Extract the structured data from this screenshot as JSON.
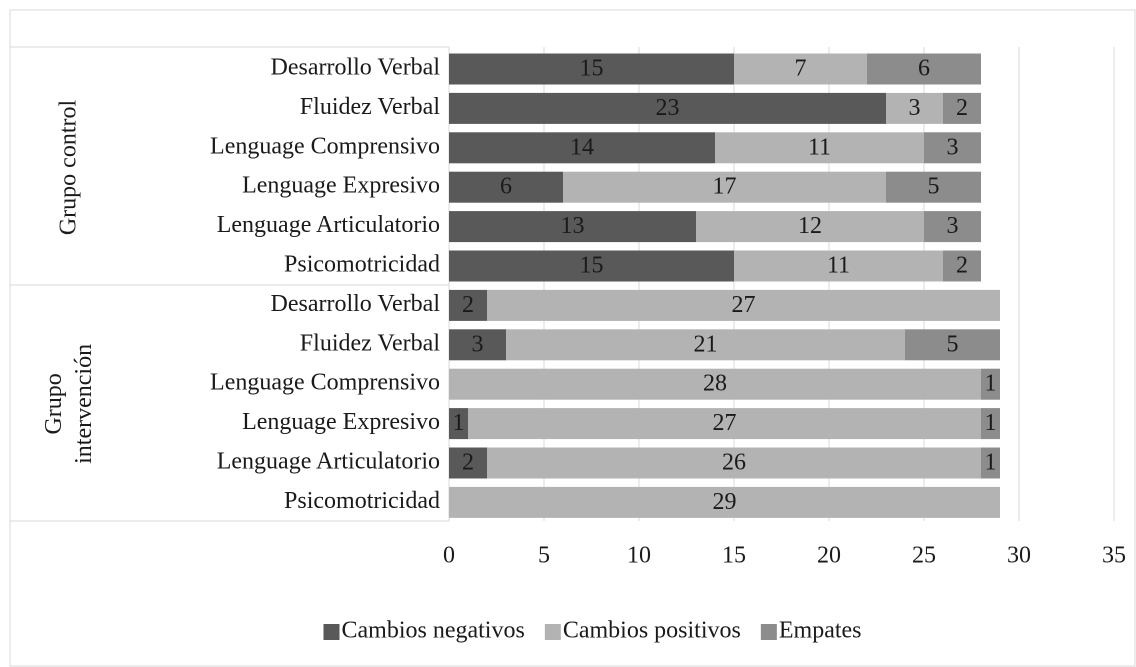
{
  "chart_data": {
    "type": "stacked-bar-horizontal",
    "groups": [
      {
        "label": "Grupo control",
        "categories": [
          "Desarrollo Verbal",
          "Fluidez Verbal",
          "Lenguage Comprensivo",
          "Lenguage Expresivo",
          "Lenguage Articulatorio",
          "Psicomotricidad"
        ]
      },
      {
        "label": "Grupo intervención",
        "categories": [
          "Desarrollo Verbal",
          "Fluidez Verbal",
          "Lenguage Comprensivo",
          "Lenguage Expresivo",
          "Lenguage Articulatorio",
          "Psicomotricidad"
        ]
      }
    ],
    "series": [
      {
        "name": "Cambios negativos",
        "color": "#595959",
        "values": [
          15,
          23,
          14,
          6,
          13,
          15,
          2,
          3,
          null,
          1,
          2,
          null
        ]
      },
      {
        "name": "Cambios positivos",
        "color": "#b3b3b3",
        "values": [
          7,
          3,
          11,
          17,
          12,
          11,
          27,
          21,
          28,
          27,
          26,
          29
        ]
      },
      {
        "name": "Empates",
        "color": "#8c8c8c",
        "values": [
          6,
          2,
          3,
          5,
          3,
          2,
          null,
          5,
          1,
          1,
          1,
          null
        ]
      }
    ],
    "xlim": [
      0,
      35
    ],
    "xticks": [
      0,
      5,
      10,
      15,
      20,
      25,
      30,
      35
    ],
    "grid": true,
    "legend": "bottom"
  }
}
